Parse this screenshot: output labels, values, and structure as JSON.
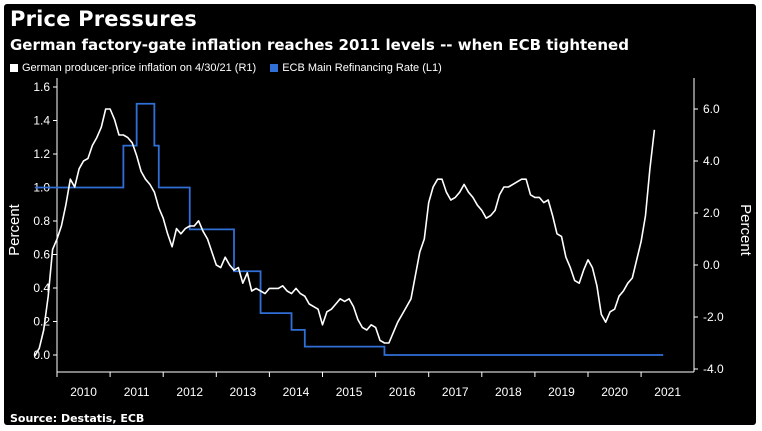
{
  "title": "Price Pressures",
  "subtitle": "German factory-gate inflation reaches 2011 levels -- when ECB tightened",
  "source": "Source: Destatis, ECB",
  "colors": {
    "background": "#000000",
    "ppi_line": "#ffffff",
    "ecb_line": "#2f6fd6",
    "text": "#ffffff"
  },
  "chart_data": {
    "type": "line",
    "legend": [
      {
        "label": "German producer-price inflation on 4/30/21 (R1)",
        "color": "#ffffff"
      },
      {
        "label": "ECB Main Refinancing Rate (L1)",
        "color": "#2f6fd6"
      }
    ],
    "x_ticks": [
      "2010",
      "2011",
      "2012",
      "2013",
      "2014",
      "2015",
      "2016",
      "2017",
      "2018",
      "2019",
      "2020",
      "2021"
    ],
    "left_axis": {
      "label": "Percent",
      "range": [
        0,
        1.6
      ],
      "ticks": [
        "0.0",
        "0.2",
        "0.4",
        "0.6",
        "0.8",
        "1.0",
        "1.2",
        "1.4",
        "1.6"
      ]
    },
    "right_axis": {
      "label": "Percent",
      "range": [
        -4,
        6.5
      ],
      "ticks": [
        "-4.0",
        "-2.0",
        "0.0",
        "2.0",
        "4.0",
        "6.0"
      ]
    },
    "x_range": [
      "2009-08",
      "2021-06"
    ],
    "series": [
      {
        "name": "German producer-price inflation on 4/30/21 (R1)",
        "axis": "right",
        "points": [
          [
            "2009-08",
            -3.5
          ],
          [
            "2009-09",
            -3.2
          ],
          [
            "2009-10",
            -2.5
          ],
          [
            "2009-11",
            -1.2
          ],
          [
            "2009-12",
            0.6
          ],
          [
            "2010-01",
            1.0
          ],
          [
            "2010-02",
            1.5
          ],
          [
            "2010-03",
            2.3
          ],
          [
            "2010-04",
            3.3
          ],
          [
            "2010-05",
            3.0
          ],
          [
            "2010-06",
            3.7
          ],
          [
            "2010-07",
            4.0
          ],
          [
            "2010-08",
            4.1
          ],
          [
            "2010-09",
            4.6
          ],
          [
            "2010-10",
            4.9
          ],
          [
            "2010-11",
            5.3
          ],
          [
            "2010-12",
            6.0
          ],
          [
            "2011-01",
            6.0
          ],
          [
            "2011-02",
            5.6
          ],
          [
            "2011-03",
            5.0
          ],
          [
            "2011-04",
            5.0
          ],
          [
            "2011-05",
            4.9
          ],
          [
            "2011-06",
            4.7
          ],
          [
            "2011-07",
            4.2
          ],
          [
            "2011-08",
            3.6
          ],
          [
            "2011-09",
            3.3
          ],
          [
            "2011-10",
            3.1
          ],
          [
            "2011-11",
            2.8
          ],
          [
            "2011-12",
            2.2
          ],
          [
            "2012-01",
            1.8
          ],
          [
            "2012-02",
            1.2
          ],
          [
            "2012-03",
            0.7
          ],
          [
            "2012-04",
            1.4
          ],
          [
            "2012-05",
            1.2
          ],
          [
            "2012-06",
            1.4
          ],
          [
            "2012-07",
            1.5
          ],
          [
            "2012-08",
            1.5
          ],
          [
            "2012-09",
            1.7
          ],
          [
            "2012-10",
            1.3
          ],
          [
            "2012-11",
            1.0
          ],
          [
            "2012-12",
            0.5
          ],
          [
            "2013-01",
            0.0
          ],
          [
            "2013-02",
            -0.1
          ],
          [
            "2013-03",
            0.3
          ],
          [
            "2013-04",
            0.0
          ],
          [
            "2013-05",
            -0.2
          ],
          [
            "2013-06",
            -0.1
          ],
          [
            "2013-07",
            -0.7
          ],
          [
            "2013-08",
            -0.3
          ],
          [
            "2013-09",
            -1.0
          ],
          [
            "2013-10",
            -0.9
          ],
          [
            "2013-11",
            -1.0
          ],
          [
            "2013-12",
            -1.1
          ],
          [
            "2014-01",
            -0.9
          ],
          [
            "2014-02",
            -0.9
          ],
          [
            "2014-03",
            -0.9
          ],
          [
            "2014-04",
            -0.8
          ],
          [
            "2014-05",
            -1.0
          ],
          [
            "2014-06",
            -1.1
          ],
          [
            "2014-07",
            -0.9
          ],
          [
            "2014-08",
            -1.1
          ],
          [
            "2014-09",
            -1.2
          ],
          [
            "2014-10",
            -1.5
          ],
          [
            "2014-11",
            -1.6
          ],
          [
            "2014-12",
            -1.7
          ],
          [
            "2015-01",
            -2.3
          ],
          [
            "2015-02",
            -1.8
          ],
          [
            "2015-03",
            -1.7
          ],
          [
            "2015-04",
            -1.5
          ],
          [
            "2015-05",
            -1.3
          ],
          [
            "2015-06",
            -1.4
          ],
          [
            "2015-07",
            -1.3
          ],
          [
            "2015-08",
            -1.6
          ],
          [
            "2015-09",
            -2.1
          ],
          [
            "2015-10",
            -2.4
          ],
          [
            "2015-11",
            -2.5
          ],
          [
            "2015-12",
            -2.3
          ],
          [
            "2016-01",
            -2.4
          ],
          [
            "2016-02",
            -2.9
          ],
          [
            "2016-03",
            -3.0
          ],
          [
            "2016-04",
            -3.0
          ],
          [
            "2016-05",
            -2.6
          ],
          [
            "2016-06",
            -2.2
          ],
          [
            "2016-07",
            -1.9
          ],
          [
            "2016-08",
            -1.6
          ],
          [
            "2016-09",
            -1.3
          ],
          [
            "2016-10",
            -0.4
          ],
          [
            "2016-11",
            0.5
          ],
          [
            "2016-12",
            1.0
          ],
          [
            "2017-01",
            2.4
          ],
          [
            "2017-02",
            3.0
          ],
          [
            "2017-03",
            3.3
          ],
          [
            "2017-04",
            3.3
          ],
          [
            "2017-05",
            2.8
          ],
          [
            "2017-06",
            2.5
          ],
          [
            "2017-07",
            2.6
          ],
          [
            "2017-08",
            2.8
          ],
          [
            "2017-09",
            3.1
          ],
          [
            "2017-10",
            2.8
          ],
          [
            "2017-11",
            2.6
          ],
          [
            "2017-12",
            2.3
          ],
          [
            "2018-01",
            2.1
          ],
          [
            "2018-02",
            1.8
          ],
          [
            "2018-03",
            1.9
          ],
          [
            "2018-04",
            2.1
          ],
          [
            "2018-05",
            2.7
          ],
          [
            "2018-06",
            3.0
          ],
          [
            "2018-07",
            3.0
          ],
          [
            "2018-08",
            3.1
          ],
          [
            "2018-09",
            3.2
          ],
          [
            "2018-10",
            3.3
          ],
          [
            "2018-11",
            3.3
          ],
          [
            "2018-12",
            2.7
          ],
          [
            "2019-01",
            2.6
          ],
          [
            "2019-02",
            2.6
          ],
          [
            "2019-03",
            2.4
          ],
          [
            "2019-04",
            2.5
          ],
          [
            "2019-05",
            1.9
          ],
          [
            "2019-06",
            1.2
          ],
          [
            "2019-07",
            1.1
          ],
          [
            "2019-08",
            0.3
          ],
          [
            "2019-09",
            -0.1
          ],
          [
            "2019-10",
            -0.6
          ],
          [
            "2019-11",
            -0.7
          ],
          [
            "2019-12",
            -0.2
          ],
          [
            "2020-01",
            0.2
          ],
          [
            "2020-02",
            -0.1
          ],
          [
            "2020-03",
            -0.8
          ],
          [
            "2020-04",
            -1.9
          ],
          [
            "2020-05",
            -2.2
          ],
          [
            "2020-06",
            -1.8
          ],
          [
            "2020-07",
            -1.7
          ],
          [
            "2020-08",
            -1.2
          ],
          [
            "2020-09",
            -1.0
          ],
          [
            "2020-10",
            -0.7
          ],
          [
            "2020-11",
            -0.5
          ],
          [
            "2020-12",
            0.2
          ],
          [
            "2021-01",
            0.9
          ],
          [
            "2021-02",
            1.9
          ],
          [
            "2021-03",
            3.7
          ],
          [
            "2021-04",
            5.2
          ]
        ]
      },
      {
        "name": "ECB Main Refinancing Rate (L1)",
        "axis": "left",
        "step": true,
        "points": [
          [
            "2009-08",
            1.0
          ],
          [
            "2011-04",
            1.25
          ],
          [
            "2011-07",
            1.5
          ],
          [
            "2011-11",
            1.25
          ],
          [
            "2011-12",
            1.0
          ],
          [
            "2012-07",
            0.75
          ],
          [
            "2013-05",
            0.5
          ],
          [
            "2013-11",
            0.25
          ],
          [
            "2014-06",
            0.15
          ],
          [
            "2014-09",
            0.05
          ],
          [
            "2016-03",
            0.0
          ],
          [
            "2021-06",
            0.0
          ]
        ]
      }
    ]
  }
}
